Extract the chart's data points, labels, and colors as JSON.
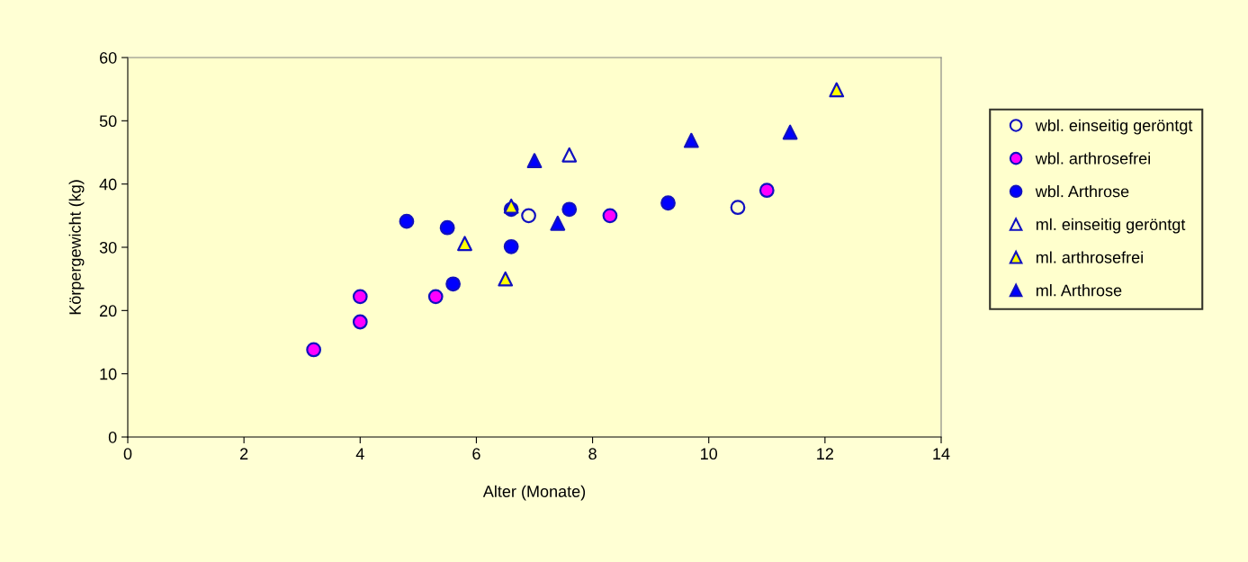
{
  "chart_data": {
    "type": "scatter",
    "xlabel": "Alter (Monate)",
    "ylabel": "Körpergewicht (kg)",
    "xlim": [
      0,
      14
    ],
    "xticks": [
      0,
      2,
      4,
      6,
      8,
      10,
      12,
      14
    ],
    "ylim": [
      0,
      60
    ],
    "yticks": [
      0,
      10,
      20,
      30,
      40,
      50,
      60
    ],
    "grid": false,
    "legend": "right",
    "series": [
      {
        "name": "wbl. einseitig geröntgt",
        "marker": "circle",
        "color": "#ffffcc",
        "x": [
          6.9,
          10.5
        ],
        "values": [
          35.0,
          36.3
        ]
      },
      {
        "name": "wbl. arthrosefrei",
        "marker": "circle",
        "color": "#ff00ff",
        "x": [
          3.2,
          4.0,
          4.0,
          5.3,
          8.3,
          11.0
        ],
        "values": [
          13.8,
          18.2,
          22.2,
          22.2,
          35.0,
          39.0
        ]
      },
      {
        "name": "wbl. Arthrose",
        "marker": "circle",
        "color": "#0000ff",
        "x": [
          4.8,
          5.5,
          5.6,
          6.6,
          6.6,
          7.6,
          9.3
        ],
        "values": [
          34.1,
          33.1,
          24.2,
          30.1,
          36.0,
          36.0,
          37.0
        ]
      },
      {
        "name": "ml. einseitig geröntgt",
        "marker": "triangle",
        "color": "#ffffcc",
        "x": [
          7.6
        ],
        "values": [
          44.6
        ]
      },
      {
        "name": "ml. arthrosefrei",
        "marker": "triangle",
        "color": "#ffff00",
        "x": [
          5.8,
          6.5,
          6.6,
          12.2
        ],
        "values": [
          30.6,
          25.0,
          36.5,
          54.9
        ]
      },
      {
        "name": "ml. Arthrose",
        "marker": "triangle",
        "color": "#0000ff",
        "x": [
          7.0,
          7.4,
          9.7,
          11.4
        ],
        "values": [
          43.7,
          33.8,
          46.9,
          48.2
        ]
      }
    ]
  }
}
